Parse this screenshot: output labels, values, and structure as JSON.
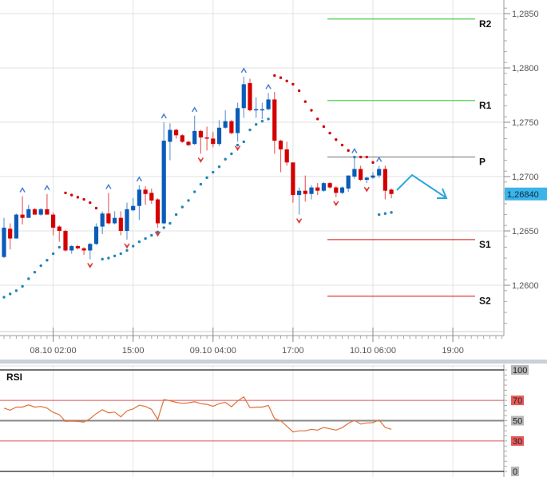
{
  "chart_data": [
    {
      "type": "candlestick",
      "price_axis": {
        "ticks": [
          "1,2850",
          "1,2800",
          "1,2750",
          "1,2700",
          "1,2650",
          "1,2600"
        ],
        "tick_values": [
          1.285,
          1.28,
          1.275,
          1.27,
          1.265,
          1.26
        ],
        "range": [
          1.2555,
          1.2875
        ]
      },
      "x_ticks": [
        {
          "label": "08.10 02:00",
          "time": "08.10 02:00"
        },
        {
          "label": "15:00",
          "time": "08.10 15:00"
        },
        {
          "label": "09.10 04:00",
          "time": "09.10 04:00"
        },
        {
          "label": "17:00",
          "time": "09.10 17:00"
        },
        {
          "label": "10.10 06:00",
          "time": "10.10 06:00"
        },
        {
          "label": "19:00",
          "time": "10.10 19:00"
        }
      ],
      "grid": true,
      "candle_fields": [
        "time",
        "open",
        "high",
        "low",
        "close"
      ],
      "candles": [
        [
          "07.10 18:00",
          1.2626,
          1.2662,
          1.2625,
          1.2653
        ],
        [
          "07.10 19:00",
          1.2652,
          1.2657,
          1.2633,
          1.2643
        ],
        [
          "07.10 20:00",
          1.2643,
          1.2666,
          1.2643,
          1.2665
        ],
        [
          "07.10 21:00",
          1.2665,
          1.2682,
          1.2656,
          1.2662
        ],
        [
          "07.10 22:00",
          1.2662,
          1.2674,
          1.2662,
          1.267
        ],
        [
          "07.10 23:00",
          1.267,
          1.2671,
          1.2665,
          1.2665
        ],
        [
          "08.10 00:00",
          1.2665,
          1.2671,
          1.2664,
          1.267
        ],
        [
          "08.10 01:00",
          1.267,
          1.2684,
          1.2665,
          1.2665
        ],
        [
          "08.10 02:00",
          1.2665,
          1.2667,
          1.2646,
          1.2653
        ],
        [
          "08.10 03:00",
          1.2654,
          1.2655,
          1.264,
          1.265
        ],
        [
          "08.10 04:00",
          1.265,
          1.2651,
          1.2631,
          1.2632
        ],
        [
          "08.10 05:00",
          1.2632,
          1.2637,
          1.2629,
          1.2636
        ],
        [
          "08.10 06:00",
          1.2636,
          1.2637,
          1.2633,
          1.2634
        ],
        [
          "08.10 07:00",
          1.2634,
          1.2635,
          1.2628,
          1.2632
        ],
        [
          "08.10 08:00",
          1.2632,
          1.2639,
          1.2624,
          1.2638
        ],
        [
          "08.10 09:00",
          1.2638,
          1.2657,
          1.2637,
          1.2654
        ],
        [
          "08.10 10:00",
          1.2654,
          1.2668,
          1.2647,
          1.2666
        ],
        [
          "08.10 11:00",
          1.2666,
          1.2685,
          1.2656,
          1.2657
        ],
        [
          "08.10 12:00",
          1.2657,
          1.2668,
          1.2656,
          1.2662
        ],
        [
          "08.10 13:00",
          1.2662,
          1.2668,
          1.2646,
          1.265
        ],
        [
          "08.10 14:00",
          1.265,
          1.2676,
          1.2642,
          1.267
        ],
        [
          "08.10 15:00",
          1.2669,
          1.268,
          1.2668,
          1.2673
        ],
        [
          "08.10 16:00",
          1.2673,
          1.2692,
          1.266,
          1.2688
        ],
        [
          "08.10 17:00",
          1.2688,
          1.2691,
          1.2674,
          1.2684
        ],
        [
          "08.10 18:00",
          1.2685,
          1.2689,
          1.2675,
          1.2678
        ],
        [
          "08.10 19:00",
          1.2679,
          1.268,
          1.2653,
          1.2657
        ],
        [
          "08.10 20:00",
          1.2657,
          1.275,
          1.2656,
          1.2733
        ],
        [
          "08.10 21:00",
          1.2732,
          1.2749,
          1.2715,
          1.2743
        ],
        [
          "08.10 22:00",
          1.2743,
          1.2744,
          1.2735,
          1.2738
        ],
        [
          "08.10 23:00",
          1.2738,
          1.2739,
          1.2731,
          1.2732
        ],
        [
          "09.10 00:00",
          1.2732,
          1.2733,
          1.2728,
          1.2729
        ],
        [
          "09.10 01:00",
          1.273,
          1.2756,
          1.2729,
          1.2742
        ],
        [
          "09.10 02:00",
          1.2742,
          1.2743,
          1.2721,
          1.2736
        ],
        [
          "09.10 03:00",
          1.2736,
          1.2746,
          1.2724,
          1.2735
        ],
        [
          "09.10 04:00",
          1.2735,
          1.2741,
          1.2727,
          1.273
        ],
        [
          "09.10 05:00",
          1.273,
          1.2752,
          1.2728,
          1.2745
        ],
        [
          "09.10 06:00",
          1.2745,
          1.2761,
          1.2744,
          1.2751
        ],
        [
          "09.10 07:00",
          1.2751,
          1.2752,
          1.2739,
          1.274
        ],
        [
          "09.10 08:00",
          1.274,
          1.2768,
          1.2732,
          1.2763
        ],
        [
          "09.10 09:00",
          1.2763,
          1.2792,
          1.2754,
          1.2785
        ],
        [
          "09.10 10:00",
          1.2786,
          1.279,
          1.276,
          1.2761
        ],
        [
          "09.10 11:00",
          1.2761,
          1.2773,
          1.2754,
          1.2762
        ],
        [
          "09.10 12:00",
          1.2762,
          1.2768,
          1.2753,
          1.2762
        ],
        [
          "09.10 13:00",
          1.2762,
          1.2777,
          1.2761,
          1.2771
        ],
        [
          "09.10 14:00",
          1.2771,
          1.2778,
          1.2721,
          1.2733
        ],
        [
          "09.10 15:00",
          1.2733,
          1.2734,
          1.2704,
          1.2725
        ],
        [
          "09.10 16:00",
          1.2725,
          1.2732,
          1.271,
          1.2713
        ],
        [
          "09.10 17:00",
          1.2713,
          1.2713,
          1.2676,
          1.2683
        ],
        [
          "09.10 18:00",
          1.2683,
          1.269,
          1.2665,
          1.2687
        ],
        [
          "09.10 19:00",
          1.2687,
          1.2701,
          1.2677,
          1.2684
        ],
        [
          "09.10 20:00",
          1.2684,
          1.2692,
          1.2679,
          1.269
        ],
        [
          "09.10 21:00",
          1.269,
          1.2694,
          1.2683,
          1.2687
        ],
        [
          "09.10 22:00",
          1.2687,
          1.2695,
          1.2686,
          1.2694
        ],
        [
          "09.10 23:00",
          1.2694,
          1.2695,
          1.2689,
          1.269
        ],
        [
          "10.10 00:00",
          1.269,
          1.2691,
          1.2681,
          1.2685
        ],
        [
          "10.10 01:00",
          1.2685,
          1.2691,
          1.2684,
          1.269
        ],
        [
          "10.10 02:00",
          1.2689,
          1.2701,
          1.2686,
          1.2701
        ],
        [
          "10.10 03:00",
          1.27,
          1.2718,
          1.2698,
          1.2707
        ],
        [
          "10.10 04:00",
          1.2707,
          1.271,
          1.2696,
          1.2697
        ],
        [
          "10.10 05:00",
          1.2697,
          1.27,
          1.2694,
          1.2699
        ],
        [
          "10.10 06:00",
          1.2699,
          1.2704,
          1.2698,
          1.2701
        ],
        [
          "10.10 07:00",
          1.2701,
          1.271,
          1.2699,
          1.2707
        ],
        [
          "10.10 08:00",
          1.2707,
          1.271,
          1.2679,
          1.2687
        ],
        [
          "10.10 09:00",
          1.2688,
          1.2689,
          1.268,
          1.2684
        ]
      ],
      "parabolic_sar": [
        1.2589,
        1.2592,
        1.2595,
        1.2599,
        1.2606,
        1.2612,
        1.2618,
        1.2623,
        1.2629,
        1.2635,
        1.2685,
        1.2683,
        1.2681,
        1.2679,
        1.2676,
        1.2671,
        1.2624,
        1.2625,
        1.2627,
        1.2629,
        1.2632,
        1.2636,
        1.264,
        1.2643,
        1.2646,
        1.2649,
        1.2653,
        1.2657,
        1.2665,
        1.2672,
        1.2678,
        1.2686,
        1.2693,
        1.2699,
        1.2704,
        1.2709,
        1.2716,
        1.2721,
        1.2729,
        1.2732,
        1.2743,
        1.2748,
        1.2751,
        1.2753,
        1.2793,
        1.2791,
        1.2788,
        1.2785,
        1.2779,
        1.2769,
        1.2761,
        1.2753,
        1.2746,
        1.274,
        1.2734,
        1.2729,
        1.2724,
        1.2718,
        1.2718,
        1.2718,
        1.2713,
        1.2665,
        1.2666,
        1.2667
      ],
      "fractals_up": [
        "07.10 21:00",
        "08.10 01:00",
        "08.10 11:00",
        "08.10 16:00",
        "08.10 20:00",
        "09.10 01:00",
        "09.10 09:00",
        "09.10 13:00",
        "10.10 03:00",
        "10.10 07:00"
      ],
      "fractals_down": [
        "08.10 08:00",
        "08.10 14:00",
        "08.10 19:00",
        "09.10 02:00",
        "09.10 08:00",
        "09.10 18:00",
        "10.10 00:00",
        "10.10 05:00"
      ],
      "pivots": [
        {
          "label": "R2",
          "value": 1.2845,
          "color": "#38c838"
        },
        {
          "label": "R1",
          "value": 1.277,
          "color": "#38c838"
        },
        {
          "label": "P",
          "value": 1.2718,
          "color": "#8a8a8a"
        },
        {
          "label": "S1",
          "value": 1.2642,
          "color": "#e03a3a"
        },
        {
          "label": "S2",
          "value": 1.259,
          "color": "#e03a3a"
        }
      ],
      "current_price": {
        "label": "1,26840",
        "value": 1.2684,
        "color": "#3bb4e8"
      },
      "forecast_arrow": {
        "direction": "down",
        "color": "#2aa5de"
      },
      "colors": {
        "up": "#0a5cb8",
        "down": "#d40000",
        "sar_up": "#1f86b8",
        "sar_down": "#d40000"
      }
    },
    {
      "type": "line",
      "title": "RSI",
      "y_ticks": [
        "100",
        "70",
        "50",
        "30",
        "0"
      ],
      "ylim": [
        0,
        100
      ],
      "levels": [
        70,
        50,
        30
      ],
      "values": [
        62.4,
        60.3,
        63.4,
        63.4,
        65.5,
        63.4,
        64,
        62.4,
        58.2,
        55.9,
        49.3,
        49.6,
        49.3,
        48.6,
        52,
        56.9,
        60.8,
        57.7,
        58.5,
        53.8,
        59.8,
        61.6,
        65.3,
        64,
        61.1,
        51.2,
        70.8,
        69.7,
        68.1,
        67.1,
        67.6,
        68.7,
        66.8,
        66.1,
        64.2,
        66.8,
        68.1,
        63.7,
        69.5,
        73.4,
        62.9,
        63.4,
        63.4,
        65,
        52,
        49.9,
        44.6,
        38.9,
        40,
        40,
        41.5,
        40.7,
        43.3,
        42,
        40.7,
        43.1,
        47.3,
        50.4,
        46.7,
        47.8,
        48,
        50.7,
        43.3,
        41.5
      ],
      "color": "#e07038"
    }
  ]
}
